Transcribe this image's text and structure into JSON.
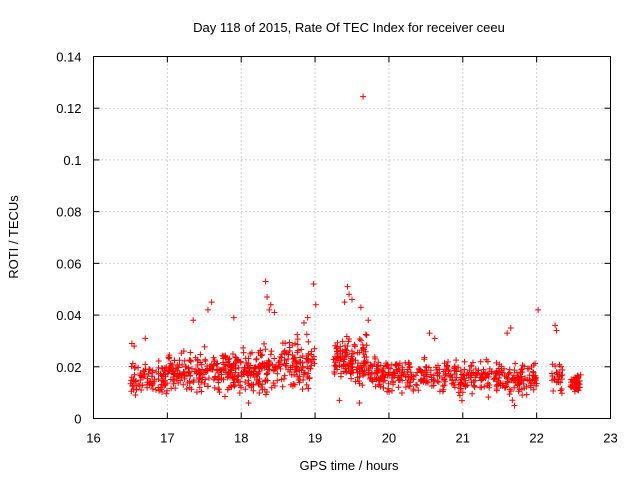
{
  "chart_data": {
    "type": "scatter",
    "title": "Day 118 of 2015, Rate Of TEC Index for receiver ceeu",
    "xlabel": "GPS time / hours",
    "ylabel": "ROTI / TECUs",
    "xlim": [
      16,
      23
    ],
    "ylim": [
      0,
      0.14
    ],
    "grid": true,
    "marker": "+",
    "colors": {
      "points": "#ff0000",
      "grid": "#a0a0a0",
      "frame": "#000000"
    },
    "xticks": [
      "16",
      "17",
      "18",
      "19",
      "20",
      "21",
      "22",
      "23"
    ],
    "yticks": [
      "0",
      "0.02",
      "0.04",
      "0.06",
      "0.08",
      "0.1",
      "0.12",
      "0.14"
    ],
    "clusters": [
      {
        "x_range": [
          16.5,
          17.0
        ],
        "y_median": 0.016,
        "y_spread": 0.006,
        "y_max": 0.032,
        "count": 90
      },
      {
        "x_range": [
          17.0,
          17.5
        ],
        "y_median": 0.018,
        "y_spread": 0.007,
        "y_max": 0.038,
        "count": 110
      },
      {
        "x_range": [
          17.5,
          18.0
        ],
        "y_median": 0.018,
        "y_spread": 0.008,
        "y_max": 0.045,
        "count": 120
      },
      {
        "x_range": [
          18.0,
          18.5
        ],
        "y_median": 0.019,
        "y_spread": 0.008,
        "y_max": 0.053,
        "count": 120
      },
      {
        "x_range": [
          18.5,
          19.0
        ],
        "y_median": 0.021,
        "y_spread": 0.009,
        "y_max": 0.05,
        "count": 110
      },
      {
        "x_range": [
          19.25,
          19.7
        ],
        "y_median": 0.022,
        "y_spread": 0.009,
        "y_max": 0.052,
        "count": 130
      },
      {
        "x_range": [
          19.7,
          20.5
        ],
        "y_median": 0.017,
        "y_spread": 0.006,
        "y_max": 0.034,
        "count": 160
      },
      {
        "x_range": [
          20.5,
          21.5
        ],
        "y_median": 0.016,
        "y_spread": 0.006,
        "y_max": 0.03,
        "count": 180
      },
      {
        "x_range": [
          21.5,
          22.0
        ],
        "y_median": 0.015,
        "y_spread": 0.006,
        "y_max": 0.035,
        "count": 100
      },
      {
        "x_range": [
          22.2,
          22.35
        ],
        "y_median": 0.016,
        "y_spread": 0.006,
        "y_max": 0.036,
        "count": 30
      },
      {
        "x_range": [
          22.45,
          22.6
        ],
        "y_median": 0.014,
        "y_spread": 0.004,
        "y_max": 0.021,
        "count": 50
      }
    ],
    "points": [
      [
        19.65,
        0.1245
      ],
      [
        22.02,
        0.042
      ],
      [
        18.98,
        0.052
      ],
      [
        18.33,
        0.053
      ],
      [
        19.44,
        0.051
      ],
      [
        19.46,
        0.048
      ],
      [
        19.5,
        0.046
      ],
      [
        17.6,
        0.045
      ],
      [
        18.4,
        0.044
      ],
      [
        18.35,
        0.047
      ],
      [
        18.38,
        0.042
      ],
      [
        19.4,
        0.045
      ],
      [
        18.45,
        0.041
      ],
      [
        17.55,
        0.042
      ],
      [
        19.62,
        0.043
      ],
      [
        19.01,
        0.044
      ],
      [
        18.9,
        0.039
      ],
      [
        21.65,
        0.035
      ],
      [
        22.25,
        0.036
      ],
      [
        22.27,
        0.034
      ],
      [
        16.52,
        0.029
      ],
      [
        16.55,
        0.028
      ],
      [
        16.7,
        0.031
      ],
      [
        20.55,
        0.033
      ],
      [
        19.72,
        0.038
      ],
      [
        18.85,
        0.037
      ],
      [
        17.35,
        0.038
      ],
      [
        17.9,
        0.039
      ],
      [
        20.62,
        0.031
      ],
      [
        21.6,
        0.033
      ],
      [
        19.33,
        0.007
      ],
      [
        19.6,
        0.006
      ],
      [
        21.7,
        0.005
      ],
      [
        18.1,
        0.006
      ]
    ]
  }
}
